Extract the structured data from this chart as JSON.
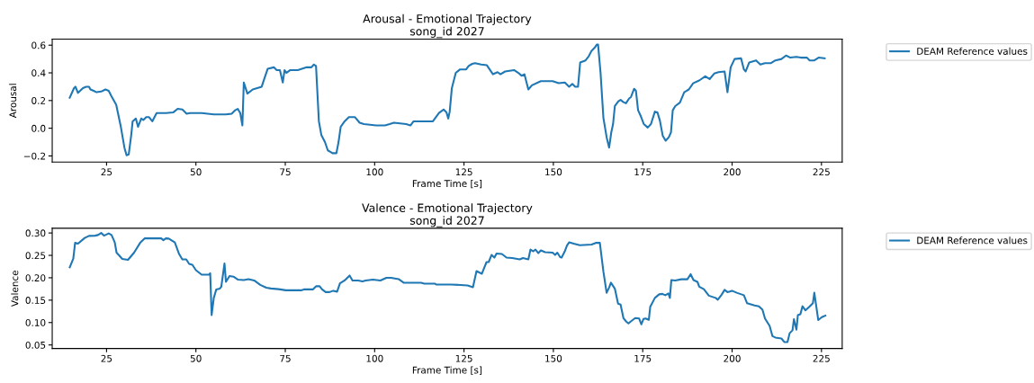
{
  "chart_data": [
    {
      "type": "line",
      "title": "Arousal - Emotional Trajectory\nsong_id 2027",
      "xlabel": "Frame Time [s]",
      "ylabel": "Arousal",
      "legend": "top right",
      "xlim": [
        9.8,
        230.8
      ],
      "ylim": [
        -0.244,
        0.644
      ],
      "xticks": [
        25,
        50,
        75,
        100,
        125,
        150,
        175,
        200,
        225
      ],
      "yticks": [
        {
          "value": -0.2,
          "label": "−0.2"
        },
        {
          "value": 0.0,
          "label": "0.0"
        },
        {
          "value": 0.2,
          "label": "0.2"
        },
        {
          "value": 0.4,
          "label": "0.4"
        },
        {
          "value": 0.6,
          "label": "0.6"
        }
      ],
      "series": [
        {
          "name": "DEAM Reference values",
          "color": "#1f77b4",
          "x": [
            14.7,
            15.9,
            16.3,
            17,
            18.4,
            19.3,
            20.1,
            20.5,
            21.4,
            22.2,
            23.5,
            24.7,
            25.6,
            26.4,
            27.7,
            29,
            30,
            30.6,
            31.2,
            31.9,
            32.3,
            33.2,
            33.8,
            34.7,
            35.3,
            36.1,
            36.9,
            37.8,
            39,
            41.6,
            43.7,
            44.9,
            46.2,
            47.4,
            48.3,
            51.6,
            55,
            58.4,
            60,
            61,
            61.7,
            62.4,
            63,
            63.4,
            64.4,
            65.9,
            68.4,
            69.3,
            70.1,
            71.8,
            72.6,
            73.5,
            74.3,
            74.8,
            75.3,
            76.4,
            78.5,
            81,
            82.3,
            83,
            83.6,
            84.4,
            85.1,
            86.1,
            86.9,
            87.6,
            88.2,
            89.3,
            89.9,
            90.5,
            91.6,
            92.8,
            94.5,
            95.8,
            97,
            100.4,
            102.9,
            104.2,
            105.4,
            107.1,
            108.8,
            110,
            110.9,
            113.8,
            116.3,
            118,
            119.3,
            120.1,
            120.6,
            121,
            121.6,
            122.7,
            123.9,
            125.6,
            126.3,
            127.3,
            128.1,
            129.8,
            131.4,
            133.1,
            134.4,
            135.2,
            136.5,
            139,
            140.2,
            141.1,
            141.9,
            143,
            144,
            146.5,
            149.8,
            151.5,
            153.2,
            154.4,
            155.3,
            156.1,
            156.9,
            157.5,
            159,
            159.9,
            160.7,
            161.5,
            162.2,
            162.5,
            163.2,
            164,
            164.9,
            165.6,
            166.2,
            166.7,
            167.2,
            168.2,
            168.8,
            169.5,
            170.3,
            171.2,
            171.7,
            172.6,
            173.1,
            173.7,
            174.5,
            175.3,
            176.4,
            177.3,
            178.4,
            179.1,
            179.8,
            180.6,
            181.4,
            182.3,
            182.9,
            183.4,
            184.1,
            185.4,
            186.6,
            187.9,
            189.1,
            190.8,
            192.5,
            193.7,
            195,
            196.2,
            197.9,
            198.7,
            199.6,
            200.7,
            202.5,
            203.3,
            203.8,
            204.8,
            206.7,
            207.9,
            209.2,
            210.9,
            212.1,
            213.8,
            215.1,
            216.3,
            218,
            219.2,
            220.9,
            221.7,
            223,
            224.2,
            225.9
          ],
          "values": [
            0.22,
            0.29,
            0.3,
            0.255,
            0.29,
            0.3,
            0.3,
            0.28,
            0.27,
            0.26,
            0.265,
            0.28,
            0.27,
            0.23,
            0.17,
            0.01,
            -0.14,
            -0.195,
            -0.19,
            -0.05,
            0.05,
            0.07,
            0.01,
            0.07,
            0.06,
            0.08,
            0.08,
            0.05,
            0.11,
            0.11,
            0.115,
            0.14,
            0.135,
            0.105,
            0.11,
            0.11,
            0.1,
            0.1,
            0.105,
            0.13,
            0.14,
            0.11,
            0.02,
            0.33,
            0.25,
            0.28,
            0.3,
            0.37,
            0.43,
            0.44,
            0.42,
            0.42,
            0.33,
            0.42,
            0.4,
            0.42,
            0.42,
            0.44,
            0.44,
            0.46,
            0.45,
            0.05,
            -0.05,
            -0.1,
            -0.16,
            -0.17,
            -0.18,
            -0.18,
            -0.1,
            0.01,
            0.05,
            0.08,
            0.08,
            0.04,
            0.03,
            0.02,
            0.02,
            0.03,
            0.04,
            0.035,
            0.03,
            0.02,
            0.05,
            0.05,
            0.05,
            0.11,
            0.135,
            0.115,
            0.07,
            0.12,
            0.29,
            0.4,
            0.425,
            0.425,
            0.45,
            0.465,
            0.47,
            0.46,
            0.455,
            0.39,
            0.405,
            0.39,
            0.41,
            0.42,
            0.4,
            0.38,
            0.39,
            0.28,
            0.31,
            0.34,
            0.34,
            0.325,
            0.33,
            0.3,
            0.32,
            0.3,
            0.3,
            0.475,
            0.49,
            0.52,
            0.56,
            0.58,
            0.605,
            0.605,
            0.4,
            0.075,
            -0.065,
            -0.14,
            -0.03,
            0.03,
            0.16,
            0.195,
            0.205,
            0.19,
            0.18,
            0.215,
            0.225,
            0.285,
            0.27,
            0.13,
            0.085,
            0.03,
            0.005,
            0.03,
            0.12,
            0.115,
            0.055,
            -0.055,
            -0.09,
            -0.065,
            -0.03,
            0.13,
            0.16,
            0.185,
            0.26,
            0.28,
            0.325,
            0.345,
            0.375,
            0.355,
            0.395,
            0.405,
            0.41,
            0.26,
            0.44,
            0.5,
            0.505,
            0.425,
            0.41,
            0.475,
            0.49,
            0.46,
            0.47,
            0.47,
            0.49,
            0.5,
            0.525,
            0.51,
            0.515,
            0.51,
            0.51,
            0.49,
            0.49,
            0.51,
            0.505
          ]
        }
      ]
    },
    {
      "type": "line",
      "title": "Valence - Emotional Trajectory\nsong_id 2027",
      "xlabel": "Frame Time [s]",
      "ylabel": "Valence",
      "legend": "top right",
      "xlim": [
        9.8,
        230.8
      ],
      "ylim": [
        0.042,
        0.3105
      ],
      "xticks": [
        25,
        50,
        75,
        100,
        125,
        150,
        175,
        200,
        225
      ],
      "yticks": [
        {
          "value": 0.05,
          "label": "0.05"
        },
        {
          "value": 0.1,
          "label": "0.10"
        },
        {
          "value": 0.15,
          "label": "0.15"
        },
        {
          "value": 0.2,
          "label": "0.20"
        },
        {
          "value": 0.25,
          "label": "0.25"
        },
        {
          "value": 0.3,
          "label": "0.30"
        }
      ],
      "series": [
        {
          "name": "DEAM Reference values",
          "color": "#1f77b4",
          "x": [
            14.7,
            15.7,
            16.2,
            17,
            18.9,
            20.1,
            21.8,
            22.6,
            23.5,
            24.3,
            25.6,
            26.4,
            27.3,
            27.8,
            28.5,
            29.4,
            31,
            32.7,
            34.4,
            35.7,
            40.3,
            40.9,
            41.6,
            42.4,
            44.1,
            45.3,
            46.2,
            47.3,
            48.1,
            49,
            50,
            51.6,
            53.7,
            54,
            54.4,
            55,
            55.7,
            56.7,
            57.1,
            58,
            58.4,
            59.4,
            60.5,
            61.7,
            63.4,
            64.7,
            66.3,
            68,
            69.7,
            71,
            73.1,
            75.2,
            79.4,
            80.2,
            82.7,
            83.6,
            84.6,
            85.3,
            86.3,
            87.4,
            88.4,
            89.5,
            90.3,
            91.6,
            93,
            93.8,
            95.4,
            96.6,
            97.5,
            99.5,
            101.6,
            103.3,
            104.6,
            106.7,
            108.1,
            113,
            113.9,
            116.8,
            117.2,
            121.4,
            126,
            127.5,
            128.5,
            130,
            131.3,
            131.9,
            132.7,
            133.5,
            134.1,
            135.6,
            136.9,
            138.5,
            140.6,
            141.5,
            143,
            143.6,
            144.4,
            145,
            145.8,
            146.5,
            147.7,
            149.8,
            150.5,
            151.1,
            151.9,
            152.3,
            153.2,
            153.8,
            154.4,
            155.7,
            157.4,
            160.7,
            162,
            163,
            164,
            164.9,
            165.6,
            166.1,
            167.2,
            168.1,
            168.8,
            169.6,
            170.4,
            171,
            171.6,
            172.9,
            174,
            174.6,
            175.2,
            175.8,
            176.7,
            177.1,
            178.4,
            179.6,
            180.5,
            181.3,
            182.2,
            182.6,
            183,
            184.1,
            185.8,
            187.5,
            188.4,
            189.2,
            190.3,
            190.8,
            192.1,
            193.5,
            195.4,
            196,
            197.1,
            197.9,
            198.7,
            200,
            201.3,
            203.3,
            204.2,
            206.3,
            207.5,
            208.5,
            209.2,
            210.5,
            211.3,
            212.1,
            213.8,
            214.6,
            215.5,
            216.1,
            216.9,
            217.3,
            218,
            218.4,
            219.1,
            219.7,
            220.5,
            221.6,
            222.6,
            223,
            224.1,
            225.1,
            226.1
          ],
          "values": [
            0.2234,
            0.243,
            0.278,
            0.276,
            0.289,
            0.2935,
            0.294,
            0.2955,
            0.3,
            0.294,
            0.299,
            0.2955,
            0.279,
            0.256,
            0.25,
            0.242,
            0.24,
            0.256,
            0.278,
            0.288,
            0.288,
            0.284,
            0.288,
            0.2875,
            0.279,
            0.253,
            0.241,
            0.241,
            0.231,
            0.229,
            0.217,
            0.207,
            0.207,
            0.21,
            0.1167,
            0.155,
            0.174,
            0.176,
            0.18,
            0.232,
            0.191,
            0.204,
            0.2025,
            0.196,
            0.195,
            0.197,
            0.194,
            0.184,
            0.1777,
            0.176,
            0.1745,
            0.172,
            0.172,
            0.174,
            0.174,
            0.181,
            0.181,
            0.174,
            0.168,
            0.168,
            0.171,
            0.169,
            0.1875,
            0.194,
            0.205,
            0.194,
            0.194,
            0.192,
            0.194,
            0.196,
            0.194,
            0.2,
            0.2,
            0.197,
            0.189,
            0.189,
            0.187,
            0.187,
            0.185,
            0.185,
            0.183,
            0.179,
            0.215,
            0.209,
            0.235,
            0.235,
            0.251,
            0.245,
            0.254,
            0.253,
            0.245,
            0.244,
            0.241,
            0.244,
            0.241,
            0.263,
            0.259,
            0.263,
            0.255,
            0.261,
            0.257,
            0.256,
            0.251,
            0.256,
            0.246,
            0.245,
            0.259,
            0.272,
            0.279,
            0.276,
            0.2725,
            0.274,
            0.278,
            0.278,
            0.2136,
            0.1665,
            0.178,
            0.189,
            0.1757,
            0.142,
            0.14,
            0.11,
            0.102,
            0.098,
            0.102,
            0.11,
            0.109,
            0.096,
            0.108,
            0.109,
            0.106,
            0.135,
            0.155,
            0.163,
            0.164,
            0.161,
            0.165,
            0.155,
            0.195,
            0.194,
            0.1966,
            0.1966,
            0.208,
            0.195,
            0.191,
            0.18,
            0.1745,
            0.16,
            0.155,
            0.151,
            0.1625,
            0.173,
            0.168,
            0.171,
            0.1665,
            0.161,
            0.143,
            0.138,
            0.136,
            0.1285,
            0.109,
            0.0925,
            0.0696,
            0.0666,
            0.0644,
            0.0565,
            0.0565,
            0.0762,
            0.0827,
            0.1076,
            0.084,
            0.1167,
            0.1187,
            0.1364,
            0.1272,
            0.135,
            0.143,
            0.1665,
            0.1056,
            0.112,
            0.1155
          ]
        }
      ]
    }
  ]
}
